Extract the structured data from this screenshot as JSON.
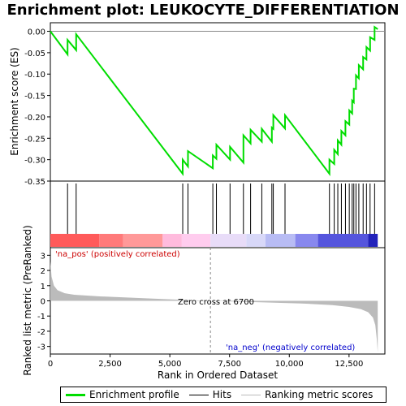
{
  "chart_data": {
    "type": "line",
    "title": "Enrichment plot: LEUKOCYTE_DIFFERENTIATION",
    "xlabel": "Rank in Ordered Dataset",
    "ylabel_top": "Enrichment score (ES)",
    "ylabel_bottom": "Ranked list metric (PreRanked)",
    "xlim": [
      0,
      14000
    ],
    "x_ticks": [
      0,
      2500,
      5000,
      7500,
      10000,
      12500
    ],
    "x_tick_labels": [
      "0",
      "2,500",
      "5,000",
      "7,500",
      "10,000",
      "12,500"
    ],
    "es_ylim": [
      -0.35,
      0.02
    ],
    "es_ticks": [
      0.0,
      -0.05,
      -0.1,
      -0.15,
      -0.2,
      -0.25,
      -0.3,
      -0.35
    ],
    "es_tick_labels": [
      "0.00",
      "-0.05",
      "-0.10",
      "-0.15",
      "-0.20",
      "-0.25",
      "-0.30",
      "-0.35"
    ],
    "metric_ylim": [
      -3.5,
      3.5
    ],
    "metric_ticks": [
      3,
      2,
      1,
      0,
      -1,
      -2,
      -3
    ],
    "metric_tick_labels": [
      "3",
      "2",
      "1",
      "0",
      "-1",
      "-2",
      "-3"
    ],
    "hits": [
      720,
      1080,
      5540,
      5760,
      6800,
      6950,
      7520,
      8080,
      8380,
      8850,
      9270,
      9330,
      9820,
      11680,
      11880,
      12030,
      12180,
      12350,
      12510,
      12630,
      12700,
      12790,
      12910,
      13090,
      13230,
      13380,
      13570
    ],
    "es_points": [
      [
        0,
        0.0
      ],
      [
        720,
        -0.054
      ],
      [
        720,
        -0.02
      ],
      [
        1080,
        -0.044
      ],
      [
        1080,
        -0.007
      ],
      [
        5540,
        -0.333
      ],
      [
        5540,
        -0.3
      ],
      [
        5760,
        -0.316
      ],
      [
        5760,
        -0.28
      ],
      [
        6800,
        -0.32
      ],
      [
        6800,
        -0.29
      ],
      [
        6950,
        -0.298
      ],
      [
        6950,
        -0.265
      ],
      [
        7520,
        -0.3
      ],
      [
        7520,
        -0.27
      ],
      [
        8080,
        -0.307
      ],
      [
        8080,
        -0.243
      ],
      [
        8380,
        -0.262
      ],
      [
        8380,
        -0.23
      ],
      [
        8850,
        -0.258
      ],
      [
        8850,
        -0.228
      ],
      [
        9270,
        -0.258
      ],
      [
        9270,
        -0.225
      ],
      [
        9330,
        -0.228
      ],
      [
        9330,
        -0.196
      ],
      [
        9820,
        -0.227
      ],
      [
        9820,
        -0.196
      ],
      [
        11680,
        -0.333
      ],
      [
        11680,
        -0.3
      ],
      [
        11880,
        -0.31
      ],
      [
        11880,
        -0.277
      ],
      [
        12030,
        -0.287
      ],
      [
        12030,
        -0.255
      ],
      [
        12180,
        -0.265
      ],
      [
        12180,
        -0.233
      ],
      [
        12350,
        -0.243
      ],
      [
        12350,
        -0.21
      ],
      [
        12510,
        -0.218
      ],
      [
        12510,
        -0.185
      ],
      [
        12630,
        -0.192
      ],
      [
        12630,
        -0.162
      ],
      [
        12700,
        -0.166
      ],
      [
        12700,
        -0.134
      ],
      [
        12790,
        -0.135
      ],
      [
        12790,
        -0.103
      ],
      [
        12910,
        -0.11
      ],
      [
        12910,
        -0.079
      ],
      [
        13090,
        -0.089
      ],
      [
        13090,
        -0.06
      ],
      [
        13230,
        -0.066
      ],
      [
        13230,
        -0.037
      ],
      [
        13380,
        -0.045
      ],
      [
        13380,
        -0.014
      ],
      [
        13570,
        -0.02
      ],
      [
        13570,
        0.01
      ],
      [
        13700,
        0.005
      ]
    ],
    "metric_profile": [
      [
        0,
        2.6
      ],
      [
        50,
        1.6
      ],
      [
        150,
        1.0
      ],
      [
        300,
        0.7
      ],
      [
        600,
        0.5
      ],
      [
        1000,
        0.4
      ],
      [
        2000,
        0.3
      ],
      [
        3500,
        0.2
      ],
      [
        5000,
        0.1
      ],
      [
        6700,
        0.0
      ],
      [
        8500,
        -0.08
      ],
      [
        10500,
        -0.17
      ],
      [
        11800,
        -0.28
      ],
      [
        12500,
        -0.4
      ],
      [
        13000,
        -0.55
      ],
      [
        13300,
        -0.75
      ],
      [
        13500,
        -1.1
      ],
      [
        13600,
        -1.6
      ],
      [
        13660,
        -2.5
      ],
      [
        13700,
        -3.4
      ]
    ],
    "positive_label": "'na_pos' (positively correlated)",
    "negative_label": "'na_neg' (negatively correlated)",
    "zero_cross_label": "Zero cross at 6700",
    "zero_cross": 6700,
    "heat_colors": [
      "#ff5a5a",
      "#ff7a7a",
      "#ff9999",
      "#ffbbdd",
      "#ffccee",
      "#e8dcf8",
      "#d8d8f8",
      "#b8bcf4",
      "#8888ee",
      "#5555dd",
      "#2222bb"
    ],
    "heat_boundaries": [
      0,
      2050,
      3050,
      4700,
      5500,
      6700,
      8200,
      9000,
      10250,
      11200,
      13300,
      13700
    ],
    "colors": {
      "es_line": "#00dd00",
      "hit_line": "#000000",
      "metric_fill": "#bbbbbb",
      "positive_label": "#cc0000",
      "negative_label": "#0000cc"
    },
    "legend": [
      {
        "label": "Enrichment profile",
        "color": "#00dd00"
      },
      {
        "label": "Hits",
        "color": "#000000"
      },
      {
        "label": "Ranking metric scores",
        "color": "#bbbbbb"
      }
    ]
  }
}
